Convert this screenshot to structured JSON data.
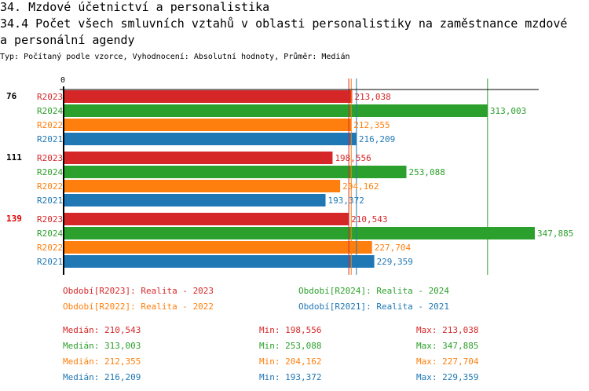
{
  "header": {
    "title": "34. Mzdové účetnictví a personalistika",
    "subtitle_line1": "34.4 Počet všech smluvních vztahů v oblasti personalistiky na zaměstnance mzdové",
    "subtitle_line2": "a personální agendy",
    "info": "Typ: Počítaný podle vzorce, Vyhodnocení: Absolutní hodnoty, Průměr: Medián"
  },
  "chart_data": {
    "type": "bar",
    "orientation": "horizontal",
    "xlim": [
      0,
      350000
    ],
    "x_tick_labels": [
      "0"
    ],
    "groups": [
      {
        "label": "76",
        "label_color": "#000000"
      },
      {
        "label": "111",
        "label_color": "#000000"
      },
      {
        "label": "139",
        "label_color": "#e00000"
      }
    ],
    "series": [
      {
        "name": "R2023",
        "color": "#d62728",
        "values": [
          213038,
          198556,
          210543
        ],
        "labels": [
          "213,038",
          "198,556",
          "210,543"
        ],
        "median": 210543
      },
      {
        "name": "R2024",
        "color": "#2ca02c",
        "values": [
          313003,
          253088,
          347885
        ],
        "labels": [
          "313,003",
          "253,088",
          "347,885"
        ],
        "median": 313003
      },
      {
        "name": "R2022",
        "color": "#ff7f0e",
        "values": [
          212355,
          204162,
          227704
        ],
        "labels": [
          "212,355",
          "204,162",
          "227,704"
        ],
        "median": 212355
      },
      {
        "name": "R2021",
        "color": "#1f77b4",
        "values": [
          216209,
          193372,
          229359
        ],
        "labels": [
          "216,209",
          "193,372",
          "229,359"
        ],
        "median": 216209
      }
    ],
    "legend": [
      {
        "text": "Období[R2023]: Realita - 2023",
        "color": "#d62728"
      },
      {
        "text": "Období[R2024]: Realita - 2024",
        "color": "#2ca02c"
      },
      {
        "text": "Období[R2022]: Realita - 2022",
        "color": "#ff7f0e"
      },
      {
        "text": "Období[R2021]: Realita - 2021",
        "color": "#1f77b4"
      }
    ],
    "stats": [
      {
        "median": "Medián: 210,543",
        "min": "Min: 198,556",
        "max": "Max: 213,038",
        "color": "#d62728"
      },
      {
        "median": "Medián: 313,003",
        "min": "Min: 253,088",
        "max": "Max: 347,885",
        "color": "#2ca02c"
      },
      {
        "median": "Medián: 212,355",
        "min": "Min: 204,162",
        "max": "Max: 227,704",
        "color": "#ff7f0e"
      },
      {
        "median": "Medián: 216,209",
        "min": "Min: 193,372",
        "max": "Max: 229,359",
        "color": "#1f77b4"
      }
    ]
  }
}
